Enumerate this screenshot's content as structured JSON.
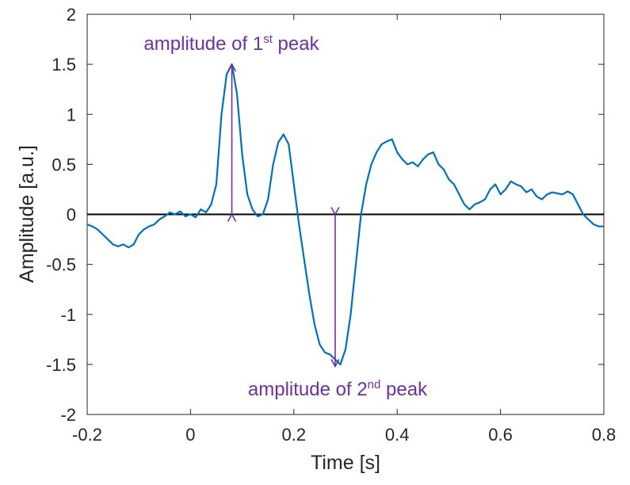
{
  "chart_data": {
    "type": "line",
    "title": "",
    "xlabel": "Time [s]",
    "ylabel": "Amplitude [a.u.]",
    "xlim": [
      -0.2,
      0.8
    ],
    "ylim": [
      -2,
      2
    ],
    "xticks": [
      -0.2,
      0,
      0.2,
      0.4,
      0.6,
      0.8
    ],
    "xtick_labels": [
      "-0.2",
      "0",
      "0.2",
      "0.4",
      "0.6",
      "0.8"
    ],
    "yticks": [
      -2,
      -1.5,
      -1,
      -0.5,
      0,
      0.5,
      1,
      1.5,
      2
    ],
    "ytick_labels": [
      "-2",
      "-1.5",
      "-1",
      "-0.5",
      "0",
      "0.5",
      "1",
      "1.5",
      "2"
    ],
    "grid": false,
    "legend": "none",
    "zero_line": true,
    "colors": {
      "series": "#0072BD",
      "annotation": "#7030A0",
      "zero_line": "#000000"
    },
    "series": [
      {
        "x": [
          -0.2,
          -0.19,
          -0.18,
          -0.17,
          -0.16,
          -0.15,
          -0.14,
          -0.13,
          -0.12,
          -0.11,
          -0.1,
          -0.09,
          -0.08,
          -0.07,
          -0.06,
          -0.05,
          -0.04,
          -0.03,
          -0.02,
          -0.01,
          0,
          0.01,
          0.02,
          0.03,
          0.04,
          0.05,
          0.06,
          0.07,
          0.08,
          0.09,
          0.1,
          0.11,
          0.12,
          0.13,
          0.14,
          0.15,
          0.16,
          0.17,
          0.18,
          0.19,
          0.2,
          0.21,
          0.22,
          0.23,
          0.24,
          0.25,
          0.26,
          0.27,
          0.28,
          0.29,
          0.3,
          0.31,
          0.32,
          0.33,
          0.34,
          0.35,
          0.36,
          0.37,
          0.38,
          0.39,
          0.4,
          0.41,
          0.42,
          0.43,
          0.44,
          0.45,
          0.46,
          0.47,
          0.48,
          0.49,
          0.5,
          0.51,
          0.52,
          0.53,
          0.54,
          0.55,
          0.56,
          0.57,
          0.58,
          0.59,
          0.6,
          0.61,
          0.62,
          0.63,
          0.64,
          0.65,
          0.66,
          0.67,
          0.68,
          0.69,
          0.7,
          0.71,
          0.72,
          0.73,
          0.74,
          0.75,
          0.76,
          0.77,
          0.78,
          0.79,
          0.8
        ],
        "y": [
          -0.1,
          -0.12,
          -0.15,
          -0.2,
          -0.25,
          -0.3,
          -0.32,
          -0.3,
          -0.33,
          -0.3,
          -0.2,
          -0.15,
          -0.12,
          -0.1,
          -0.05,
          -0.02,
          0.02,
          0.0,
          0.03,
          -0.02,
          0.0,
          -0.03,
          0.05,
          0.02,
          0.1,
          0.3,
          1.0,
          1.4,
          1.5,
          1.2,
          0.6,
          0.2,
          0.05,
          -0.02,
          0.0,
          0.15,
          0.5,
          0.72,
          0.8,
          0.7,
          0.3,
          -0.1,
          -0.45,
          -0.8,
          -1.1,
          -1.3,
          -1.38,
          -1.4,
          -1.45,
          -1.5,
          -1.35,
          -1.0,
          -0.5,
          0.0,
          0.3,
          0.5,
          0.62,
          0.7,
          0.73,
          0.75,
          0.62,
          0.55,
          0.5,
          0.52,
          0.48,
          0.55,
          0.6,
          0.62,
          0.5,
          0.45,
          0.35,
          0.3,
          0.2,
          0.1,
          0.05,
          0.1,
          0.12,
          0.15,
          0.25,
          0.3,
          0.2,
          0.25,
          0.33,
          0.3,
          0.28,
          0.22,
          0.25,
          0.18,
          0.15,
          0.2,
          0.22,
          0.21,
          0.2,
          0.23,
          0.2,
          0.1,
          0.0,
          -0.05,
          -0.1,
          -0.12,
          -0.12
        ]
      }
    ],
    "annotations": [
      {
        "prefix": "amplitude of 1",
        "sup": "st",
        "suffix": " peak",
        "x": 0.08,
        "from": 0,
        "to": 1.5
      },
      {
        "prefix": "amplitude of 2",
        "sup": "nd",
        "suffix": " peak",
        "x": 0.28,
        "from": 0,
        "to": -1.52
      }
    ]
  }
}
